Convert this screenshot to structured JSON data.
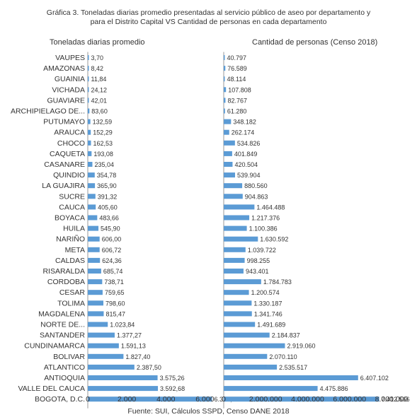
{
  "title_line1": "Gráfica 3. Toneladas diarias promedio presentadas al servicio público de aseo por departamento y",
  "title_line2": "para el Distrito Capital VS Cantidad de personas en cada departamento",
  "source": "Fuente: SUI, Cálculos SSPD, Censo DANE 2018",
  "colors": {
    "bar": "#5b9bd5",
    "axis": "#999999",
    "text": "#333333"
  },
  "chart_data": [
    {
      "type": "bar",
      "orientation": "horizontal",
      "title": "Toneladas diarias promedio",
      "categories": [
        "VAUPES",
        "AMAZONAS",
        "GUAINIA",
        "VICHADA",
        "GUAVIARE",
        "ARCHIPIELAGO DE...",
        "PUTUMAYO",
        "ARAUCA",
        "CHOCO",
        "CAQUETA",
        "CASANARE",
        "QUINDIO",
        "LA GUAJIRA",
        "SUCRE",
        "CAUCA",
        "BOYACA",
        "HUILA",
        "NARIÑO",
        "META",
        "CALDAS",
        "RISARALDA",
        "CORDOBA",
        "CESAR",
        "TOLIMA",
        "MAGDALENA",
        "NORTE DE...",
        "SANTANDER",
        "CUNDINAMARCA",
        "BOLIVAR",
        "ATLANTICO",
        "ANTIOQUIA",
        "VALLE DEL CAUCA",
        "BOGOTA, D.C."
      ],
      "values": [
        3.7,
        8.42,
        11.84,
        24.12,
        42.01,
        83.6,
        132.59,
        152.29,
        162.53,
        193.08,
        235.04,
        354.78,
        365.9,
        391.32,
        405.6,
        483.66,
        545.9,
        606.0,
        606.72,
        624.36,
        685.74,
        738.71,
        759.65,
        798.6,
        815.47,
        1023.84,
        1377.27,
        1591.13,
        1827.4,
        2387.5,
        3575.26,
        3592.68,
        6366.24
      ],
      "labels": [
        "3,70",
        "8,42",
        "11,84",
        "24,12",
        "42,01",
        "83,60",
        "132,59",
        "152,29",
        "162,53",
        "193,08",
        "235,04",
        "354,78",
        "365,90",
        "391,32",
        "405,60",
        "483,66",
        "545,90",
        "606,00",
        "606,72",
        "624,36",
        "685,74",
        "738,71",
        "759,65",
        "798,60",
        "815,47",
        "1.023,84",
        "1.377,27",
        "1.591,13",
        "1.827,40",
        "2.387,50",
        "3.575,26",
        "3.592,68",
        "6.366,24"
      ],
      "xlim": [
        0,
        7000
      ],
      "ticks": [
        0,
        2000,
        4000,
        6000
      ],
      "tick_labels": [
        "0",
        "2.000",
        "4.000",
        "6.000"
      ]
    },
    {
      "type": "bar",
      "orientation": "horizontal",
      "title": "Cantidad de personas (Censo 2018)",
      "categories": [
        "VAUPES",
        "AMAZONAS",
        "GUAINIA",
        "VICHADA",
        "GUAVIARE",
        "ARCHIPIELAGO DE...",
        "PUTUMAYO",
        "ARAUCA",
        "CHOCO",
        "CAQUETA",
        "CASANARE",
        "QUINDIO",
        "LA GUAJIRA",
        "SUCRE",
        "CAUCA",
        "BOYACA",
        "HUILA",
        "NARIÑO",
        "META",
        "CALDAS",
        "RISARALDA",
        "CORDOBA",
        "CESAR",
        "TOLIMA",
        "MAGDALENA",
        "NORTE DE...",
        "SANTANDER",
        "CUNDINAMARCA",
        "BOLIVAR",
        "ATLANTICO",
        "ANTIOQUIA",
        "VALLE DEL CAUCA",
        "BOGOTA, D.C."
      ],
      "values": [
        40797,
        76589,
        48114,
        107808,
        82767,
        61280,
        348182,
        262174,
        534826,
        401849,
        420504,
        539904,
        880560,
        904863,
        1464488,
        1217376,
        1100386,
        1630592,
        1039722,
        998255,
        943401,
        1784783,
        1200574,
        1330187,
        1341746,
        1491689,
        2184837,
        2919060,
        2070110,
        2535517,
        6407102,
        4475886,
        7412566
      ],
      "labels": [
        "40.797",
        "76.589",
        "48.114",
        "107.808",
        "82.767",
        "61.280",
        "348.182",
        "262.174",
        "534.826",
        "401.849",
        "420.504",
        "539.904",
        "880.560",
        "904.863",
        "1.464.488",
        "1.217.376",
        "1.100.386",
        "1.630.592",
        "1.039.722",
        "998.255",
        "943.401",
        "1.784.783",
        "1.200.574",
        "1.330.187",
        "1.341.746",
        "1.491.689",
        "2.184.837",
        "2.919.060",
        "2.070.110",
        "2.535.517",
        "6.407.102",
        "4.475.886",
        "7.412.566"
      ],
      "xlim": [
        0,
        8000000
      ],
      "ticks": [
        0,
        2000000,
        4000000,
        6000000,
        8000000
      ],
      "tick_labels": [
        "0",
        "2.000.000",
        "4.000.000",
        "6.000.000",
        "8.000.000"
      ]
    }
  ]
}
